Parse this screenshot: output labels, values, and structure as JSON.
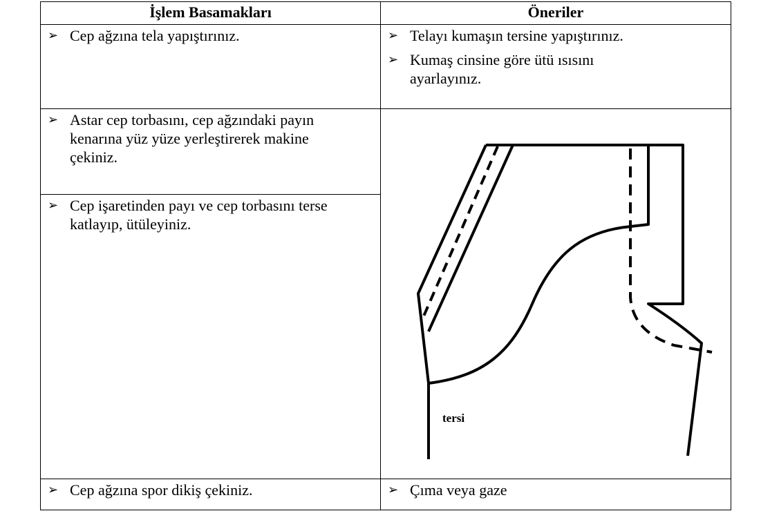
{
  "table": {
    "headers": [
      "İşlem Basamakları",
      "Öneriler"
    ],
    "rows": [
      {
        "steps": [
          "Cep ağzına tela yapıştırınız."
        ],
        "tips": [
          "Telayı kumaşın tersine yapıştırınız.",
          "Kumaş cinsine göre ütü ısısını ayarlayınız."
        ]
      },
      {
        "steps": [
          "Astar cep torbasını, cep ağzındaki payın kenarına yüz yüze yerleştirerek makine çekiniz."
        ]
      },
      {
        "steps": [
          "Cep işaretinden payı ve cep torbasını terse katlayıp, ütüleyiniz."
        ]
      },
      {
        "steps": [
          "Cep ağzına spor dikiş çekiniz."
        ],
        "tips": [
          "Çıma veya gaze"
        ]
      }
    ]
  },
  "figure": {
    "label": "tersi"
  }
}
